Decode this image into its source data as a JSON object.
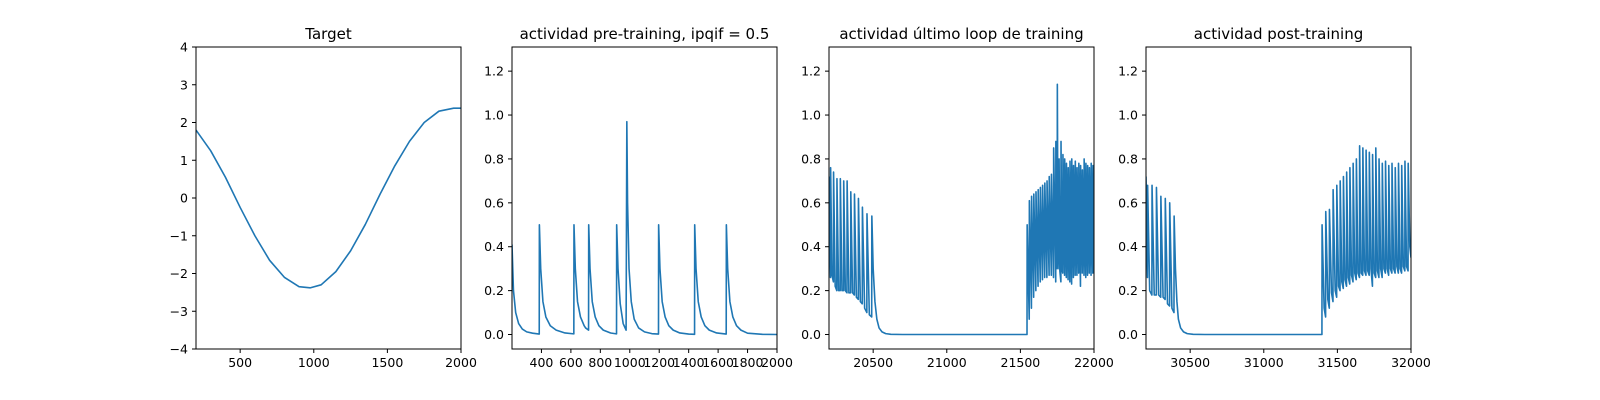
{
  "colors": {
    "series": "#1f77b4"
  },
  "chart_data": [
    {
      "type": "line",
      "title": "Target",
      "xlim": [
        200,
        2000
      ],
      "ylim": [
        -4,
        4
      ],
      "xticks": [
        500,
        1000,
        1500,
        2000
      ],
      "yticks": [
        -4,
        -3,
        -2,
        -1,
        0,
        1,
        2,
        3,
        4
      ],
      "xtick_labels": [
        "500",
        "1000",
        "1500",
        "2000"
      ],
      "ytick_labels": [
        "−4",
        "−3",
        "−2",
        "−1",
        "0",
        "1",
        "2",
        "3",
        "4"
      ],
      "series": [
        {
          "x": [
            200,
            300,
            400,
            500,
            600,
            700,
            800,
            900,
            975,
            1050,
            1150,
            1250,
            1350,
            1450,
            1550,
            1650,
            1750,
            1850,
            1950,
            2000
          ],
          "y": [
            1.8,
            1.25,
            0.55,
            -0.25,
            -1.0,
            -1.65,
            -2.1,
            -2.35,
            -2.38,
            -2.3,
            -1.95,
            -1.4,
            -0.7,
            0.1,
            0.85,
            1.5,
            2.0,
            2.3,
            2.38,
            2.38
          ]
        }
      ]
    },
    {
      "type": "line",
      "title": "actividad pre-training, ipqif = 0.5",
      "xlim": [
        200,
        2000
      ],
      "ylim": [
        -0.066,
        1.31
      ],
      "xticks": [
        400,
        600,
        800,
        1000,
        1200,
        1400,
        1600,
        1800,
        2000
      ],
      "yticks": [
        0.0,
        0.2,
        0.4,
        0.6,
        0.8,
        1.0,
        1.2
      ],
      "xtick_labels": [
        "400",
        "600",
        "800",
        "1000",
        "1200",
        "1400",
        "1600",
        "1800",
        "2000"
      ],
      "ytick_labels": [
        "0.0",
        "0.2",
        "0.4",
        "0.6",
        "0.8",
        "1.0",
        "1.2"
      ],
      "series": [
        {
          "x": [
            200,
            210,
            225,
            245,
            270,
            300,
            340,
            385,
            386,
            395,
            410,
            430,
            460,
            500,
            560,
            620,
            621,
            630,
            645,
            665,
            690,
            700,
            720,
            721,
            730,
            745,
            765,
            790,
            820,
            870,
            910,
            911,
            920,
            935,
            955,
            975,
            980,
            985,
            995,
            1010,
            1030,
            1060,
            1100,
            1150,
            1195,
            1196,
            1205,
            1220,
            1240,
            1265,
            1295,
            1340,
            1400,
            1440,
            1441,
            1450,
            1465,
            1485,
            1510,
            1540,
            1590,
            1655,
            1656,
            1665,
            1680,
            1700,
            1725,
            1755,
            1800,
            1900,
            2000
          ],
          "y": [
            0.41,
            0.2,
            0.1,
            0.05,
            0.025,
            0.012,
            0.006,
            0.002,
            0.5,
            0.3,
            0.15,
            0.08,
            0.04,
            0.02,
            0.007,
            0.003,
            0.5,
            0.3,
            0.15,
            0.08,
            0.04,
            0.03,
            0.02,
            0.5,
            0.3,
            0.15,
            0.08,
            0.04,
            0.02,
            0.007,
            0.003,
            0.5,
            0.3,
            0.14,
            0.05,
            0.02,
            0.97,
            0.6,
            0.3,
            0.15,
            0.07,
            0.03,
            0.012,
            0.004,
            0.002,
            0.5,
            0.3,
            0.15,
            0.08,
            0.04,
            0.02,
            0.007,
            0.002,
            0.001,
            0.5,
            0.3,
            0.15,
            0.08,
            0.04,
            0.02,
            0.007,
            0.002,
            0.5,
            0.3,
            0.15,
            0.08,
            0.04,
            0.02,
            0.006,
            0.001,
            0.0
          ]
        }
      ]
    },
    {
      "type": "line",
      "title": "actividad último loop de training",
      "xlim": [
        20200,
        22000
      ],
      "ylim": [
        -0.066,
        1.31
      ],
      "xticks": [
        20500,
        21000,
        21500,
        22000
      ],
      "yticks": [
        0.0,
        0.2,
        0.4,
        0.6,
        0.8,
        1.0,
        1.2
      ],
      "xtick_labels": [
        "20500",
        "21000",
        "21500",
        "22000"
      ],
      "ytick_labels": [
        "0.0",
        "0.2",
        "0.4",
        "0.6",
        "0.8",
        "1.0",
        "1.2"
      ],
      "series": [
        {
          "x": [
            20200,
            20210,
            20211,
            20220,
            20230,
            20231,
            20242,
            20253,
            20254,
            20265,
            20276,
            20277,
            20288,
            20299,
            20300,
            20311,
            20322,
            20323,
            20335,
            20347,
            20348,
            20360,
            20372,
            20373,
            20386,
            20399,
            20400,
            20413,
            20426,
            20427,
            20442,
            20457,
            20458,
            20474,
            20490,
            20491,
            20500,
            20512,
            20525,
            20540,
            20560,
            20585,
            20620,
            20700,
            21000,
            21400,
            21545,
            21546,
            21560,
            21561,
            21575,
            21576,
            21590,
            21591,
            21605,
            21606,
            21620,
            21621,
            21635,
            21636,
            21650,
            21651,
            21665,
            21666,
            21680,
            21681,
            21695,
            21696,
            21710,
            21711,
            21725,
            21726,
            21740,
            21741,
            21750,
            21751,
            21755,
            21762,
            21763,
            21768,
            21775,
            21776,
            21782,
            21788,
            21789,
            21800,
            21801,
            21812,
            21813,
            21824,
            21825,
            21836,
            21837,
            21848,
            21849,
            21860,
            21861,
            21872,
            21873,
            21884,
            21885,
            21896,
            21897,
            21908,
            21909,
            21920,
            21921,
            21932,
            21933,
            21944,
            21945,
            21956,
            21957,
            21968,
            21969,
            21980,
            21981,
            21992,
            21993,
            22000
          ],
          "y": [
            0.72,
            0.26,
            0.76,
            0.27,
            0.24,
            0.74,
            0.22,
            0.2,
            0.71,
            0.2,
            0.2,
            0.71,
            0.2,
            0.2,
            0.7,
            0.2,
            0.19,
            0.7,
            0.19,
            0.19,
            0.65,
            0.19,
            0.18,
            0.64,
            0.17,
            0.16,
            0.62,
            0.15,
            0.14,
            0.58,
            0.12,
            0.1,
            0.55,
            0.09,
            0.08,
            0.54,
            0.3,
            0.15,
            0.07,
            0.03,
            0.012,
            0.004,
            0.001,
            0.0,
            0.0,
            0.0,
            0.0,
            0.5,
            0.07,
            0.61,
            0.12,
            0.63,
            0.17,
            0.64,
            0.2,
            0.65,
            0.22,
            0.66,
            0.24,
            0.67,
            0.25,
            0.68,
            0.26,
            0.69,
            0.26,
            0.7,
            0.27,
            0.72,
            0.27,
            0.73,
            0.26,
            0.85,
            0.24,
            0.88,
            0.3,
            1.14,
            0.45,
            0.3,
            0.8,
            0.29,
            0.24,
            0.88,
            0.3,
            0.28,
            0.82,
            0.27,
            0.8,
            0.26,
            0.78,
            0.25,
            0.76,
            0.24,
            0.79,
            0.23,
            0.8,
            0.26,
            0.77,
            0.27,
            0.79,
            0.27,
            0.76,
            0.28,
            0.78,
            0.22,
            0.77,
            0.28,
            0.75,
            0.27,
            0.8,
            0.26,
            0.78,
            0.27,
            0.77,
            0.28,
            0.76,
            0.27,
            0.78,
            0.28,
            0.77,
            0.28
          ]
        }
      ]
    },
    {
      "type": "line",
      "title": "actividad post-training",
      "xlim": [
        30200,
        32000
      ],
      "ylim": [
        -0.066,
        1.31
      ],
      "xticks": [
        30500,
        31000,
        31500,
        32000
      ],
      "yticks": [
        0.0,
        0.2,
        0.4,
        0.6,
        0.8,
        1.0,
        1.2
      ],
      "xtick_labels": [
        "30500",
        "31000",
        "31500",
        "32000"
      ],
      "ytick_labels": [
        "0.0",
        "0.2",
        "0.4",
        "0.6",
        "0.8",
        "1.0",
        "1.2"
      ],
      "series": [
        {
          "x": [
            30200,
            30210,
            30211,
            30225,
            30240,
            30241,
            30256,
            30270,
            30271,
            30286,
            30300,
            30301,
            30316,
            30330,
            30331,
            30346,
            30360,
            30361,
            30376,
            30390,
            30391,
            30400,
            30410,
            30420,
            30435,
            30455,
            30480,
            30520,
            30600,
            31000,
            31395,
            31396,
            31410,
            31420,
            31421,
            31435,
            31445,
            31446,
            31460,
            31470,
            31471,
            31485,
            31495,
            31496,
            31508,
            31518,
            31519,
            31530,
            31540,
            31541,
            31552,
            31562,
            31563,
            31574,
            31584,
            31585,
            31596,
            31606,
            31607,
            31618,
            31628,
            31629,
            31640,
            31650,
            31651,
            31662,
            31672,
            31673,
            31684,
            31694,
            31695,
            31706,
            31716,
            31717,
            31728,
            31738,
            31739,
            31750,
            31760,
            31761,
            31772,
            31782,
            31783,
            31794,
            31804,
            31805,
            31816,
            31826,
            31827,
            31838,
            31848,
            31849,
            31860,
            31870,
            31871,
            31882,
            31892,
            31893,
            31904,
            31914,
            31915,
            31926,
            31936,
            31937,
            31948,
            31958,
            31959,
            31970,
            31980,
            31981,
            31992,
            32000
          ],
          "y": [
            0.72,
            0.26,
            0.68,
            0.2,
            0.18,
            0.68,
            0.18,
            0.18,
            0.67,
            0.18,
            0.17,
            0.63,
            0.17,
            0.16,
            0.62,
            0.14,
            0.13,
            0.6,
            0.12,
            0.1,
            0.54,
            0.3,
            0.15,
            0.07,
            0.03,
            0.012,
            0.004,
            0.001,
            0.0,
            0.0,
            0.0,
            0.5,
            0.12,
            0.08,
            0.56,
            0.16,
            0.12,
            0.57,
            0.19,
            0.15,
            0.66,
            0.2,
            0.17,
            0.68,
            0.22,
            0.2,
            0.7,
            0.24,
            0.21,
            0.72,
            0.25,
            0.22,
            0.74,
            0.26,
            0.23,
            0.76,
            0.27,
            0.24,
            0.78,
            0.28,
            0.25,
            0.8,
            0.28,
            0.26,
            0.86,
            0.28,
            0.27,
            0.85,
            0.29,
            0.27,
            0.84,
            0.29,
            0.27,
            0.83,
            0.3,
            0.22,
            0.82,
            0.28,
            0.26,
            0.85,
            0.29,
            0.26,
            0.8,
            0.3,
            0.26,
            0.78,
            0.3,
            0.28,
            0.79,
            0.3,
            0.27,
            0.77,
            0.3,
            0.28,
            0.78,
            0.3,
            0.28,
            0.76,
            0.31,
            0.28,
            0.78,
            0.3,
            0.28,
            0.77,
            0.31,
            0.29,
            0.79,
            0.31,
            0.29,
            0.78,
            0.4,
            0.35
          ]
        }
      ]
    }
  ]
}
